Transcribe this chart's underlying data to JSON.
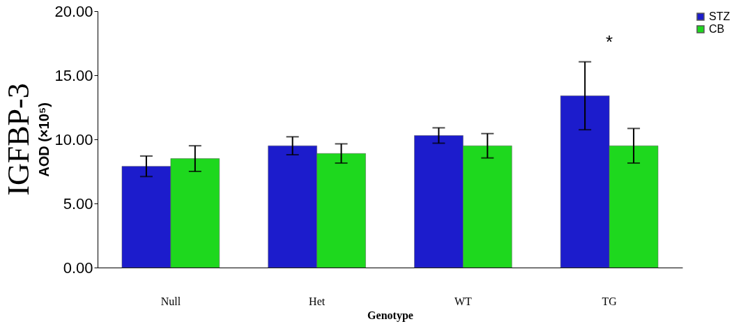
{
  "chart_data": {
    "type": "bar",
    "title": "IGFBP-3",
    "ylabel": "AOD (×10⁵)",
    "xlabel": "Genotype",
    "categories": [
      "Null",
      "Het",
      "WT",
      "TG"
    ],
    "series": [
      {
        "name": "STZ",
        "color": "#1c1ccc",
        "values": [
          7.9,
          9.5,
          10.3,
          13.4
        ],
        "errors": [
          0.8,
          0.7,
          0.6,
          2.65
        ]
      },
      {
        "name": "CB",
        "color": "#1ed81e",
        "values": [
          8.5,
          8.9,
          9.5,
          9.5
        ],
        "errors": [
          1.0,
          0.75,
          0.95,
          1.35
        ]
      }
    ],
    "ylim": [
      0,
      20
    ],
    "yticks": [
      {
        "value": 0,
        "label": "0.00"
      },
      {
        "value": 5,
        "label": "5.00"
      },
      {
        "value": 10,
        "label": "10.00"
      },
      {
        "value": 15,
        "label": "15.00"
      },
      {
        "value": 20,
        "label": "20.00"
      }
    ],
    "annotations": [
      "*"
    ],
    "legend": "right",
    "grid": false
  }
}
